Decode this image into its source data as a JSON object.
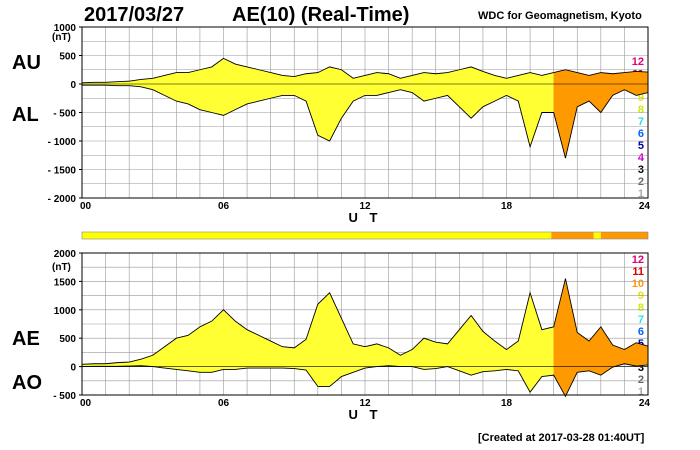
{
  "header": {
    "date": "2017/03/27",
    "index_title": "AE(10) (Real-Time)",
    "institution": "WDC for Geomagnetism, Kyoto",
    "created": "[Created at 2017-03-28 01:40UT]"
  },
  "level_labels": [
    "12",
    "11",
    "10",
    "9",
    "8",
    "7",
    "6",
    "5",
    "4",
    "3",
    "2",
    "1"
  ],
  "level_colors": [
    "#e0007a",
    "#e00000",
    "#ff9900",
    "#e6e600",
    "#ccee00",
    "#33dddd",
    "#0066ff",
    "#0000aa",
    "#cc00cc",
    "#000000",
    "#666666",
    "#aaaaaa"
  ],
  "colors": {
    "fill_yellow": "#ffff33",
    "fill_orange": "#ff9900",
    "line": "#000000",
    "grid": "#999999"
  },
  "chart_data": [
    {
      "type": "area",
      "panel": "top",
      "series_labels": [
        "AU",
        "AL"
      ],
      "unit_label": "(nT)",
      "ylim": [
        -2000,
        1000
      ],
      "yticks": [
        1000,
        500,
        0,
        -500,
        -1000,
        -1500,
        -2000
      ],
      "ytick_labels": [
        "1000",
        "500",
        "0",
        "- 500",
        "- 1000",
        "- 1500",
        "- 2000"
      ],
      "xlim": [
        0,
        24
      ],
      "xticks": [
        0,
        6,
        12,
        18,
        24
      ],
      "xtick_labels": [
        "00",
        "06",
        "12",
        "18",
        "24"
      ],
      "xlabel": "U T",
      "x": [
        0,
        0.5,
        1,
        1.5,
        2,
        2.5,
        3,
        3.5,
        4,
        4.5,
        5,
        5.5,
        6,
        6.5,
        7,
        7.5,
        8,
        8.5,
        9,
        9.5,
        10,
        10.5,
        11,
        11.5,
        12,
        12.5,
        13,
        13.5,
        14,
        14.5,
        15,
        15.5,
        16,
        16.5,
        17,
        17.5,
        18,
        18.5,
        19,
        19.5,
        20,
        20.5,
        21,
        21.5,
        22,
        22.5,
        23,
        23.5,
        24
      ],
      "AU": [
        20,
        30,
        30,
        40,
        50,
        80,
        100,
        150,
        200,
        200,
        250,
        300,
        450,
        350,
        300,
        250,
        200,
        150,
        130,
        180,
        200,
        300,
        250,
        100,
        150,
        200,
        180,
        100,
        150,
        200,
        180,
        200,
        250,
        300,
        220,
        150,
        100,
        150,
        200,
        150,
        200,
        250,
        200,
        150,
        200,
        180,
        200,
        220,
        210
      ],
      "AL": [
        -20,
        -20,
        -20,
        -30,
        -30,
        -50,
        -100,
        -200,
        -300,
        -350,
        -450,
        -500,
        -550,
        -450,
        -350,
        -300,
        -250,
        -200,
        -200,
        -300,
        -900,
        -1000,
        -600,
        -300,
        -200,
        -200,
        -150,
        -100,
        -150,
        -300,
        -250,
        -200,
        -400,
        -600,
        -400,
        -300,
        -200,
        -300,
        -1100,
        -500,
        -500,
        -1300,
        -400,
        -300,
        -500,
        -200,
        -100,
        -200,
        -150
      ],
      "level_bar": {
        "segments": [
          {
            "from": 0,
            "to": 19.9,
            "level": 9
          },
          {
            "from": 19.9,
            "to": 21.7,
            "level": 10
          },
          {
            "from": 21.7,
            "to": 22.0,
            "level": 9
          },
          {
            "from": 22.0,
            "to": 24,
            "level": 10
          }
        ]
      }
    },
    {
      "type": "area",
      "panel": "bottom",
      "series_labels": [
        "AE",
        "AO"
      ],
      "unit_label": "(nT)",
      "ylim": [
        -500,
        2000
      ],
      "yticks": [
        2000,
        1500,
        1000,
        500,
        0,
        -500
      ],
      "ytick_labels": [
        "2000",
        "1500",
        "1000",
        "500",
        "0",
        "- 500"
      ],
      "xlim": [
        0,
        24
      ],
      "xticks": [
        0,
        6,
        12,
        18,
        24
      ],
      "xtick_labels": [
        "00",
        "06",
        "12",
        "18",
        "24"
      ],
      "xlabel": "U T",
      "x": [
        0,
        0.5,
        1,
        1.5,
        2,
        2.5,
        3,
        3.5,
        4,
        4.5,
        5,
        5.5,
        6,
        6.5,
        7,
        7.5,
        8,
        8.5,
        9,
        9.5,
        10,
        10.5,
        11,
        11.5,
        12,
        12.5,
        13,
        13.5,
        14,
        14.5,
        15,
        15.5,
        16,
        16.5,
        17,
        17.5,
        18,
        18.5,
        19,
        19.5,
        20,
        20.5,
        21,
        21.5,
        22,
        22.5,
        23,
        23.5,
        24
      ],
      "AE": [
        40,
        50,
        50,
        70,
        80,
        130,
        200,
        350,
        500,
        550,
        700,
        800,
        1000,
        800,
        650,
        550,
        450,
        350,
        330,
        480,
        1100,
        1300,
        850,
        400,
        350,
        400,
        330,
        200,
        300,
        500,
        430,
        400,
        650,
        900,
        620,
        450,
        300,
        450,
        1300,
        650,
        700,
        1550,
        600,
        450,
        700,
        380,
        300,
        420,
        360
      ],
      "AO": [
        0,
        5,
        5,
        5,
        10,
        15,
        0,
        -25,
        -50,
        -75,
        -100,
        -100,
        -50,
        -50,
        -25,
        -25,
        -25,
        -25,
        -35,
        -60,
        -350,
        -350,
        -175,
        -100,
        -25,
        0,
        15,
        0,
        0,
        -50,
        -35,
        0,
        -75,
        -150,
        -90,
        -75,
        -50,
        -75,
        -450,
        -175,
        -150,
        -525,
        -100,
        -75,
        -150,
        -10,
        50,
        10,
        30
      ]
    }
  ]
}
